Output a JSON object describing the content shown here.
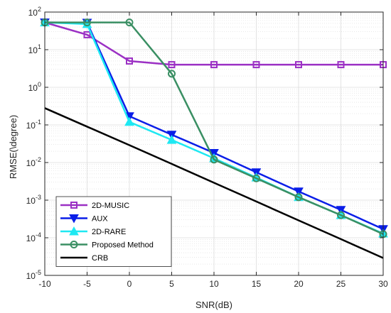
{
  "chart_data": {
    "type": "line",
    "title": "",
    "xlabel": "SNR(dB)",
    "ylabel": "RMSE(\\degree)",
    "x": [
      -10,
      -5,
      0,
      5,
      10,
      15,
      20,
      25,
      30
    ],
    "xlim": [
      -10,
      30
    ],
    "ylim": [
      1e-05,
      100
    ],
    "yscale": "log",
    "grid": true,
    "legend_position": "bottom-left",
    "x_tick_labels": [
      "-10",
      "-5",
      "0",
      "5",
      "10",
      "15",
      "20",
      "25",
      "30"
    ],
    "y_tick_labels": [
      {
        "base": "10",
        "exp": "-5",
        "value": 1e-05
      },
      {
        "base": "10",
        "exp": "-4",
        "value": 0.0001
      },
      {
        "base": "10",
        "exp": "-3",
        "value": 0.001
      },
      {
        "base": "10",
        "exp": "-2",
        "value": 0.01
      },
      {
        "base": "10",
        "exp": "-1",
        "value": 0.1
      },
      {
        "base": "10",
        "exp": "0",
        "value": 1
      },
      {
        "base": "10",
        "exp": "1",
        "value": 10
      },
      {
        "base": "10",
        "exp": "2",
        "value": 100
      }
    ],
    "series": [
      {
        "name": "2D-MUSIC",
        "color": "#9b30c4",
        "marker": "square",
        "values": [
          53,
          25,
          5,
          4,
          4,
          4,
          4,
          4,
          4
        ]
      },
      {
        "name": "AUX",
        "color": "#0a1ee8",
        "marker": "triangle-down",
        "values": [
          53,
          52,
          0.17,
          0.055,
          0.018,
          0.0055,
          0.0017,
          0.00055,
          0.00017
        ]
      },
      {
        "name": "2D-RARE",
        "color": "#1ee8f2",
        "marker": "triangle-up",
        "values": [
          53,
          48,
          0.12,
          0.04,
          0.013,
          0.004,
          0.0012,
          0.0004,
          0.00013
        ]
      },
      {
        "name": "Proposed Method",
        "color": "#3a8f63",
        "marker": "circle",
        "values": [
          53,
          53,
          53,
          2.3,
          0.012,
          0.0038,
          0.0012,
          0.0004,
          0.000125
        ]
      },
      {
        "name": "CRB",
        "color": "#000000",
        "marker": "none",
        "values": [
          0.28,
          0.09,
          0.029,
          0.0092,
          0.0029,
          0.00092,
          0.00029,
          9.2e-05,
          2.9e-05
        ]
      }
    ]
  }
}
